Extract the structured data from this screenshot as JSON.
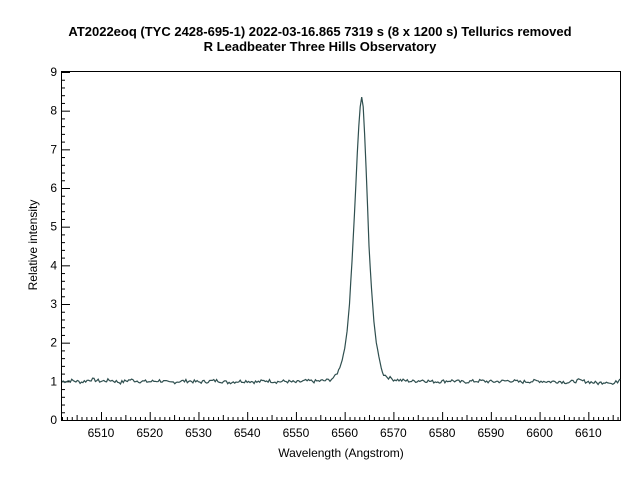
{
  "chart_data": {
    "type": "line",
    "title": "AT2022eoq (TYC 2428-695-1)  2022-03-16.865  7319 s (8 x 1200 s)  Tellurics removed",
    "subtitle": "R Leadbeater Three Hills Observatory",
    "xlabel": "Wavelength (Angstrom)",
    "ylabel": "Relative intensity",
    "xlim": [
      6502,
      6616.5
    ],
    "ylim": [
      0,
      9
    ],
    "xticks": [
      6510,
      6520,
      6530,
      6540,
      6550,
      6560,
      6570,
      6580,
      6590,
      6600,
      6610
    ],
    "yticks": [
      0,
      1,
      2,
      3,
      4,
      5,
      6,
      7,
      8,
      9
    ],
    "grid": false,
    "line_color": "#2f4f4f",
    "series": [
      {
        "x": [
          6502,
          6504,
          6506,
          6508,
          6510,
          6512,
          6514,
          6516,
          6518,
          6520,
          6522,
          6524,
          6526,
          6528,
          6530,
          6532,
          6534,
          6536,
          6538,
          6540,
          6542,
          6544,
          6546,
          6548,
          6550,
          6552,
          6554,
          6556,
          6557,
          6558,
          6558.5,
          6559,
          6559.5,
          6560,
          6560.5,
          6561,
          6561.5,
          6562,
          6562.3,
          6562.6,
          6562.9,
          6563.2,
          6563.5,
          6563.8,
          6564.1,
          6564.4,
          6564.7,
          6565,
          6565.5,
          6566,
          6566.5,
          6567,
          6567.5,
          6568,
          6569,
          6570,
          6572,
          6574,
          6576,
          6578,
          6580,
          6582,
          6584,
          6586,
          6588,
          6590,
          6592,
          6594,
          6596,
          6598,
          6600,
          6602,
          6604,
          6606,
          6608,
          6610,
          6612,
          6614,
          6615,
          6616,
          6616.5
        ],
        "y": [
          1.0,
          1.02,
          0.98,
          1.05,
          1.0,
          1.03,
          0.97,
          1.04,
          1.0,
          0.99,
          1.02,
          0.96,
          1.0,
          1.01,
          0.98,
          1.0,
          1.02,
          0.97,
          1.0,
          1.01,
          0.98,
          1.02,
          0.99,
          1.0,
          0.97,
          1.01,
          1.0,
          1.02,
          1.04,
          1.12,
          1.22,
          1.35,
          1.55,
          1.85,
          2.3,
          3.0,
          4.1,
          5.3,
          6.1,
          6.9,
          7.6,
          8.1,
          8.35,
          8.1,
          7.4,
          6.5,
          5.5,
          4.5,
          3.4,
          2.55,
          2.0,
          1.65,
          1.35,
          1.18,
          1.1,
          1.05,
          1.02,
          1.0,
          1.03,
          0.99,
          1.0,
          1.02,
          0.98,
          1.0,
          1.01,
          0.99,
          1.0,
          1.02,
          0.98,
          1.0,
          1.01,
          0.99,
          1.0,
          0.97,
          1.02,
          0.99,
          0.95,
          1.0,
          0.92,
          1.0,
          1.06
        ]
      }
    ]
  }
}
